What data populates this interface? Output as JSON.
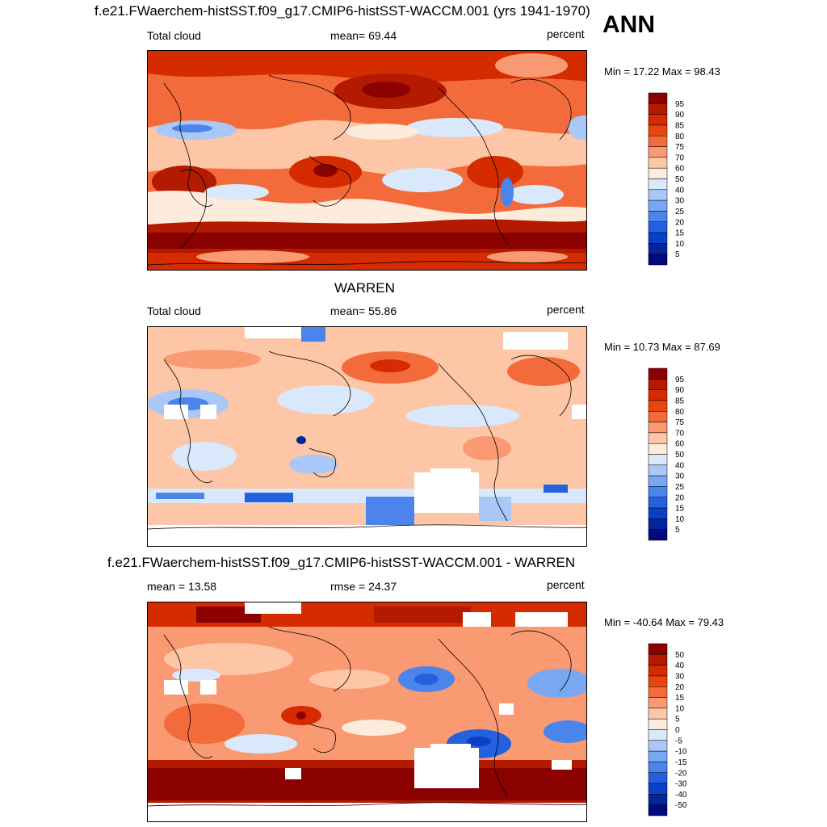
{
  "season": "ANN",
  "panels": [
    {
      "id": "model",
      "title": "f.e21.FWaerchem-histSST.f09_g17.CMIP6-histSST-WACCM.001 (yrs 1941-1970)",
      "left": "Total cloud",
      "center": "mean=  69.44",
      "right": "percent",
      "minmax": "Min =  17.22 Max =  98.43",
      "levels": [
        "95",
        "90",
        "85",
        "80",
        "75",
        "70",
        "60",
        "50",
        "40",
        "30",
        "25",
        "20",
        "15",
        "10",
        "5"
      ],
      "colors": [
        "#8b0000",
        "#b31a00",
        "#d42b00",
        "#e8450f",
        "#f36b3b",
        "#fa9a72",
        "#fdc6a6",
        "#fdebdc",
        "#d9e8fb",
        "#a9c8f7",
        "#7aa7f2",
        "#4b84ea",
        "#2461de",
        "#0a3fc9",
        "#02249c",
        "#000a7c"
      ]
    },
    {
      "id": "obs",
      "title": "WARREN",
      "left": "Total cloud",
      "center": "mean=  55.86",
      "right": "percent",
      "minmax": "Min =  10.73 Max =  87.69",
      "levels": [
        "95",
        "90",
        "85",
        "80",
        "75",
        "70",
        "60",
        "50",
        "40",
        "30",
        "25",
        "20",
        "15",
        "10",
        "5"
      ],
      "colors": [
        "#8b0000",
        "#b31a00",
        "#d42b00",
        "#e8450f",
        "#f36b3b",
        "#fa9a72",
        "#fdc6a6",
        "#fdebdc",
        "#d9e8fb",
        "#a9c8f7",
        "#7aa7f2",
        "#4b84ea",
        "#2461de",
        "#0a3fc9",
        "#02249c",
        "#000a7c"
      ]
    },
    {
      "id": "diff",
      "title": "f.e21.FWaerchem-histSST.f09_g17.CMIP6-histSST-WACCM.001 - WARREN",
      "left": "mean =  13.58",
      "center": "rmse =  24.37",
      "right": "percent",
      "minmax": "Min = -40.64 Max =  79.43",
      "levels": [
        "50",
        "40",
        "30",
        "20",
        "15",
        "10",
        "5",
        "0",
        "-5",
        "-10",
        "-15",
        "-20",
        "-30",
        "-40",
        "-50"
      ],
      "colors": [
        "#8b0000",
        "#b31a00",
        "#d42b00",
        "#e8450f",
        "#f36b3b",
        "#fa9a72",
        "#fdc6a6",
        "#fdebdc",
        "#d9e8fb",
        "#a9c8f7",
        "#7aa7f2",
        "#4b84ea",
        "#2461de",
        "#0a3fc9",
        "#02249c",
        "#000a7c"
      ]
    }
  ]
}
